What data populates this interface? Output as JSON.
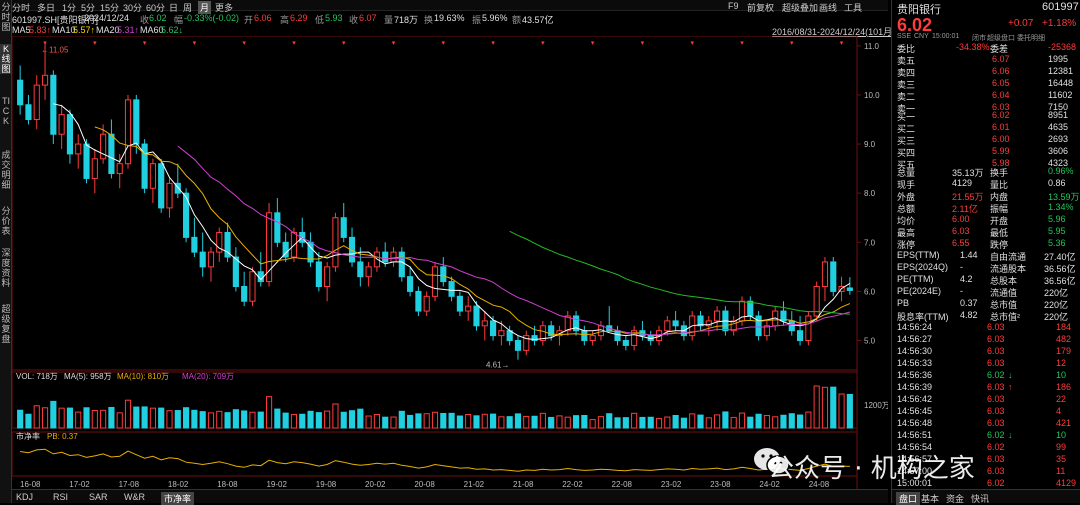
{
  "left_tabs": [
    "分时图",
    "K线图",
    "TICK",
    "成交明细",
    "分价表",
    "深度资料",
    "超级复盘"
  ],
  "period_tabs": [
    "分时",
    "多日",
    "1分",
    "5分",
    "15分",
    "30分",
    "60分",
    "日",
    "周",
    "月",
    "更多"
  ],
  "active_period": "月",
  "toolbar_right": [
    "F9",
    "前复权",
    "超级叠加",
    "画线",
    "工具"
  ],
  "info": {
    "symbol": "601997.SH[贵阳银行]",
    "date": "2024/12/24",
    "close_lbl": "收",
    "close": "6.02",
    "change_lbl": "幅",
    "change": "-0.33%(-0.02)",
    "open_lbl": "开",
    "open": "6.06",
    "high_lbl": "高",
    "high": "6.29",
    "low_lbl": "低",
    "low": "5.93",
    "prev_lbl": "收",
    "prev": "6.07",
    "vol_lbl": "量",
    "vol": "718万",
    "turn_lbl": "换",
    "turn": "19.63%",
    "amp_lbl": "振",
    "amp": "5.96%",
    "amt_lbl": "额",
    "amt": "43.57亿"
  },
  "ma": {
    "ma5": "MA5",
    "ma5v": "5.83↑",
    "ma10": "MA10",
    "ma10v": "5.57↑",
    "ma20": "MA20",
    "ma20v": "5.31↑",
    "ma60": "MA60",
    "ma60v": "5.62↓"
  },
  "range": "2016/08/31-2024/12/24(101月)",
  "colors": {
    "up": "#ff3b3b",
    "down": "#20d0e0",
    "ma5": "#ffffff",
    "ma10": "#e8b000",
    "ma20": "#d040d0",
    "ma60": "#22bb22"
  },
  "price_axis": [
    "11.0",
    "10.0",
    "9.0",
    "8.0",
    "7.0",
    "6.0",
    "5.0"
  ],
  "high_mark": "11.05",
  "low_mark": "4.61",
  "vol_info": {
    "vol": "VOL: 718万",
    "ma5": "MA(5): 958万",
    "ma10": "MA(10): 810万",
    "ma20": "MA(20): 709万"
  },
  "vol_axis": "1200万",
  "pe_info": {
    "label": "市净率",
    "pb": "PB: 0.37"
  },
  "time_axis": [
    "16-08",
    "17-02",
    "17-08",
    "18-02",
    "18-08",
    "19-02",
    "19-08",
    "20-02",
    "20-08",
    "21-02",
    "21-08",
    "22-02",
    "22-08",
    "23-02",
    "23-08",
    "24-02",
    "24-08"
  ],
  "chart_data": {
    "type": "candlestick",
    "ylim": [
      4.4,
      11.2
    ],
    "ohlc": [
      [
        10.3,
        10.6,
        9.6,
        9.8
      ],
      [
        9.8,
        10.0,
        9.4,
        9.5
      ],
      [
        9.5,
        10.4,
        9.3,
        10.2
      ],
      [
        10.2,
        11.05,
        9.9,
        10.4
      ],
      [
        10.4,
        10.5,
        9.0,
        9.2
      ],
      [
        9.2,
        9.8,
        8.9,
        9.6
      ],
      [
        9.6,
        9.7,
        8.6,
        8.8
      ],
      [
        8.8,
        9.2,
        8.5,
        9.0
      ],
      [
        9.0,
        9.1,
        8.2,
        8.3
      ],
      [
        8.3,
        8.9,
        8.0,
        8.7
      ],
      [
        8.7,
        9.4,
        8.6,
        9.2
      ],
      [
        9.2,
        9.5,
        8.3,
        8.4
      ],
      [
        8.4,
        8.8,
        8.1,
        8.6
      ],
      [
        8.6,
        10.0,
        8.5,
        9.9
      ],
      [
        9.9,
        10.0,
        8.8,
        9.0
      ],
      [
        9.0,
        9.1,
        8.0,
        8.1
      ],
      [
        8.1,
        8.7,
        7.8,
        8.6
      ],
      [
        8.6,
        8.7,
        7.6,
        7.7
      ],
      [
        7.7,
        8.3,
        7.5,
        8.2
      ],
      [
        8.2,
        8.6,
        7.9,
        8.0
      ],
      [
        8.0,
        8.1,
        7.0,
        7.1
      ],
      [
        7.1,
        7.5,
        6.7,
        6.8
      ],
      [
        6.8,
        7.2,
        6.3,
        6.5
      ],
      [
        6.5,
        6.9,
        6.2,
        6.8
      ],
      [
        6.8,
        7.3,
        6.6,
        7.2
      ],
      [
        7.2,
        7.4,
        6.6,
        6.7
      ],
      [
        6.7,
        6.9,
        6.0,
        6.1
      ],
      [
        6.1,
        6.4,
        5.7,
        5.8
      ],
      [
        5.8,
        6.5,
        5.7,
        6.4
      ],
      [
        6.4,
        6.8,
        6.1,
        6.2
      ],
      [
        6.2,
        7.8,
        6.1,
        7.6
      ],
      [
        7.6,
        7.9,
        6.9,
        7.0
      ],
      [
        7.0,
        7.2,
        6.6,
        6.7
      ],
      [
        6.7,
        7.3,
        6.6,
        7.2
      ],
      [
        7.2,
        7.5,
        6.9,
        7.0
      ],
      [
        7.0,
        7.2,
        6.5,
        6.6
      ],
      [
        6.6,
        6.8,
        6.0,
        6.1
      ],
      [
        6.1,
        6.6,
        5.8,
        6.5
      ],
      [
        6.5,
        7.6,
        6.4,
        7.5
      ],
      [
        7.5,
        7.8,
        7.0,
        7.1
      ],
      [
        7.1,
        7.3,
        6.5,
        6.6
      ],
      [
        6.6,
        6.9,
        6.1,
        6.3
      ],
      [
        6.3,
        6.6,
        6.1,
        6.5
      ],
      [
        6.5,
        6.9,
        6.4,
        6.8
      ],
      [
        6.8,
        7.0,
        6.5,
        6.6
      ],
      [
        6.6,
        6.9,
        6.5,
        6.8
      ],
      [
        6.8,
        6.9,
        6.2,
        6.3
      ],
      [
        6.3,
        6.5,
        5.9,
        6.0
      ],
      [
        6.0,
        6.1,
        5.5,
        5.6
      ],
      [
        5.6,
        6.0,
        5.5,
        5.9
      ],
      [
        5.9,
        6.6,
        5.8,
        6.5
      ],
      [
        6.5,
        6.7,
        6.1,
        6.2
      ],
      [
        6.2,
        6.3,
        5.8,
        5.9
      ],
      [
        5.9,
        6.0,
        5.5,
        5.6
      ],
      [
        5.6,
        5.9,
        5.4,
        5.7
      ],
      [
        5.7,
        5.8,
        5.2,
        5.3
      ],
      [
        5.3,
        5.6,
        5.0,
        5.4
      ],
      [
        5.4,
        5.5,
        5.0,
        5.1
      ],
      [
        5.1,
        5.4,
        4.9,
        5.2
      ],
      [
        5.2,
        5.3,
        4.9,
        5.0
      ],
      [
        5.0,
        5.1,
        4.61,
        4.8
      ],
      [
        4.8,
        5.2,
        4.7,
        5.1
      ],
      [
        5.1,
        5.3,
        4.9,
        5.0
      ],
      [
        5.0,
        5.4,
        4.9,
        5.3
      ],
      [
        5.3,
        5.4,
        5.0,
        5.1
      ],
      [
        5.1,
        5.3,
        4.9,
        5.2
      ],
      [
        5.2,
        5.6,
        5.1,
        5.5
      ],
      [
        5.5,
        5.6,
        5.1,
        5.2
      ],
      [
        5.2,
        5.3,
        4.9,
        5.0
      ],
      [
        5.0,
        5.2,
        4.9,
        5.1
      ],
      [
        5.1,
        5.4,
        5.0,
        5.3
      ],
      [
        5.3,
        5.7,
        5.2,
        5.2
      ],
      [
        5.2,
        5.3,
        4.9,
        5.0
      ],
      [
        5.0,
        5.1,
        4.8,
        4.9
      ],
      [
        4.9,
        5.3,
        4.8,
        5.2
      ],
      [
        5.2,
        5.4,
        5.0,
        5.1
      ],
      [
        5.1,
        5.2,
        4.9,
        5.0
      ],
      [
        5.0,
        5.3,
        4.9,
        5.2
      ],
      [
        5.2,
        5.5,
        5.1,
        5.4
      ],
      [
        5.4,
        5.6,
        5.2,
        5.3
      ],
      [
        5.3,
        5.4,
        5.0,
        5.1
      ],
      [
        5.1,
        5.6,
        5.0,
        5.5
      ],
      [
        5.5,
        5.6,
        5.2,
        5.3
      ],
      [
        5.3,
        5.5,
        5.1,
        5.4
      ],
      [
        5.4,
        5.7,
        5.2,
        5.6
      ],
      [
        5.6,
        5.7,
        5.1,
        5.2
      ],
      [
        5.2,
        5.5,
        5.1,
        5.4
      ],
      [
        5.4,
        5.9,
        5.3,
        5.8
      ],
      [
        5.8,
        5.9,
        5.4,
        5.5
      ],
      [
        5.5,
        5.6,
        5.0,
        5.1
      ],
      [
        5.1,
        5.4,
        5.0,
        5.3
      ],
      [
        5.3,
        5.7,
        5.2,
        5.6
      ],
      [
        5.6,
        5.8,
        5.3,
        5.4
      ],
      [
        5.4,
        5.6,
        5.1,
        5.2
      ],
      [
        5.2,
        5.5,
        4.9,
        5.0
      ],
      [
        5.0,
        5.6,
        4.9,
        5.5
      ],
      [
        5.5,
        6.2,
        5.4,
        6.1
      ],
      [
        6.1,
        6.7,
        5.8,
        6.6
      ],
      [
        6.6,
        6.7,
        5.9,
        6.0
      ],
      [
        6.0,
        6.3,
        5.8,
        6.1
      ],
      [
        6.07,
        6.29,
        5.93,
        6.02
      ]
    ]
  },
  "quote": {
    "name": "贵阳银行",
    "code": "601997",
    "price": "6.02",
    "chg": "+0.07",
    "pct": "+1.18%",
    "sub": [
      "SSE",
      "CNY",
      "15:00:01",
      "闭市"
    ],
    "sub_right": "超级盘口 委托明细",
    "wb_lbl": "委比",
    "wb": "-34.38%",
    "wc_lbl": "委差",
    "wc": "-25368",
    "asks": [
      [
        "卖五",
        "6.07",
        "1995"
      ],
      [
        "卖四",
        "6.06",
        "12381"
      ],
      [
        "卖三",
        "6.05",
        "16448"
      ],
      [
        "卖二",
        "6.04",
        "11602"
      ],
      [
        "卖一",
        "6.03",
        "7150"
      ]
    ],
    "bids": [
      [
        "买一",
        "6.02",
        "8951"
      ],
      [
        "买二",
        "6.01",
        "4635"
      ],
      [
        "买三",
        "6.00",
        "2693"
      ],
      [
        "买四",
        "5.99",
        "3606"
      ],
      [
        "买五",
        "5.98",
        "4323"
      ]
    ],
    "stats": [
      [
        "总量",
        "35.13万",
        "换手",
        "0.96%"
      ],
      [
        "现手",
        "4129",
        "量比",
        "0.86"
      ],
      [
        "外盘",
        "21.55万",
        "内盘",
        "13.59万"
      ],
      [
        "总额",
        "2.11亿",
        "振幅",
        "1.34%"
      ],
      [
        "均价",
        "6.00",
        "开盘",
        "5.96"
      ],
      [
        "最高",
        "6.03",
        "最低",
        "5.95"
      ],
      [
        "涨停",
        "6.55",
        "跌停",
        "5.36"
      ]
    ],
    "fin": [
      [
        "EPS(TTM)",
        "1.44",
        "自由流通",
        "27.40亿"
      ],
      [
        "EPS(2024Q)",
        "-",
        "流通股本",
        "36.56亿"
      ],
      [
        "PE(TTM)",
        "4.2",
        "总股本",
        "36.56亿"
      ],
      [
        "PE(2024E)",
        "-",
        "流通值",
        "220亿"
      ],
      [
        "PB",
        "0.37",
        "总市值",
        "220亿"
      ],
      [
        "股息率(TTM)",
        "4.82",
        "总市值²",
        "220亿"
      ]
    ],
    "ticks": [
      [
        "14:56:24",
        "6.03",
        "184",
        ""
      ],
      [
        "14:56:27",
        "6.03",
        "482",
        ""
      ],
      [
        "14:56:30",
        "6.03",
        "179",
        ""
      ],
      [
        "14:56:33",
        "6.03",
        "12",
        ""
      ],
      [
        "14:56:36",
        "6.02",
        "10",
        "↓"
      ],
      [
        "14:56:39",
        "6.03",
        "186",
        "↑"
      ],
      [
        "14:56:42",
        "6.03",
        "22",
        ""
      ],
      [
        "14:56:45",
        "6.03",
        "4",
        ""
      ],
      [
        "14:56:48",
        "6.03",
        "421",
        ""
      ],
      [
        "14:56:51",
        "6.02",
        "10",
        "↓"
      ],
      [
        "14:56:54",
        "6.02",
        "99",
        ""
      ],
      [
        "14:56:57",
        "6.03",
        "35",
        ""
      ],
      [
        "14:57:00",
        "6.03",
        "11",
        ""
      ],
      [
        "15:00:01",
        "6.02",
        "4129",
        ""
      ]
    ]
  },
  "bottom_tabs": [
    "KDJ",
    "RSI",
    "SAR",
    "W&R",
    "市净率"
  ],
  "active_bottom": "市净率",
  "right_tabs": [
    "盘口",
    "基本",
    "资金",
    "快讯"
  ],
  "watermark": "公众号 · 机构之家"
}
